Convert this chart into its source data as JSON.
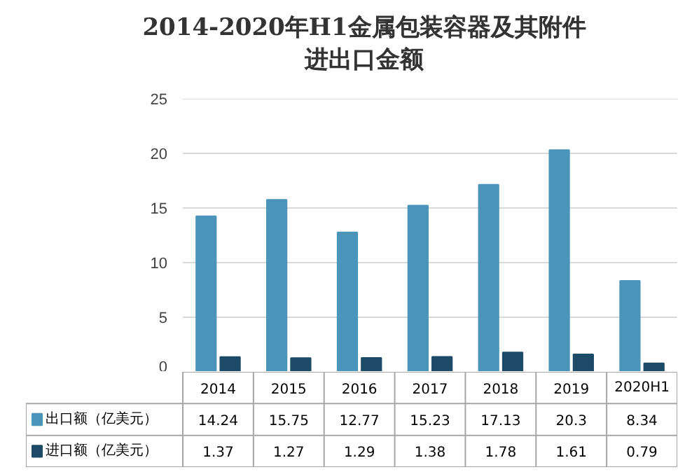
{
  "chart_data": {
    "type": "bar",
    "title": "2014-2020年H1金属包装容器及其附件进出口金额",
    "categories": [
      "2014",
      "2015",
      "2016",
      "2017",
      "2018",
      "2019",
      "2020H1"
    ],
    "series": [
      {
        "name": "出口额（亿美元）",
        "color": "#4a95b9",
        "values": [
          14.24,
          15.75,
          12.77,
          15.23,
          17.13,
          20.3,
          8.34
        ]
      },
      {
        "name": "进口额（亿美元）",
        "color": "#1d4a66",
        "values": [
          1.37,
          1.27,
          1.29,
          1.38,
          1.78,
          1.61,
          0.79
        ]
      }
    ],
    "ylim": [
      0,
      25
    ],
    "yticks": [
      0,
      5,
      10,
      15,
      20,
      25
    ],
    "grid": "y",
    "legend": "bottom",
    "data_labels": true
  }
}
